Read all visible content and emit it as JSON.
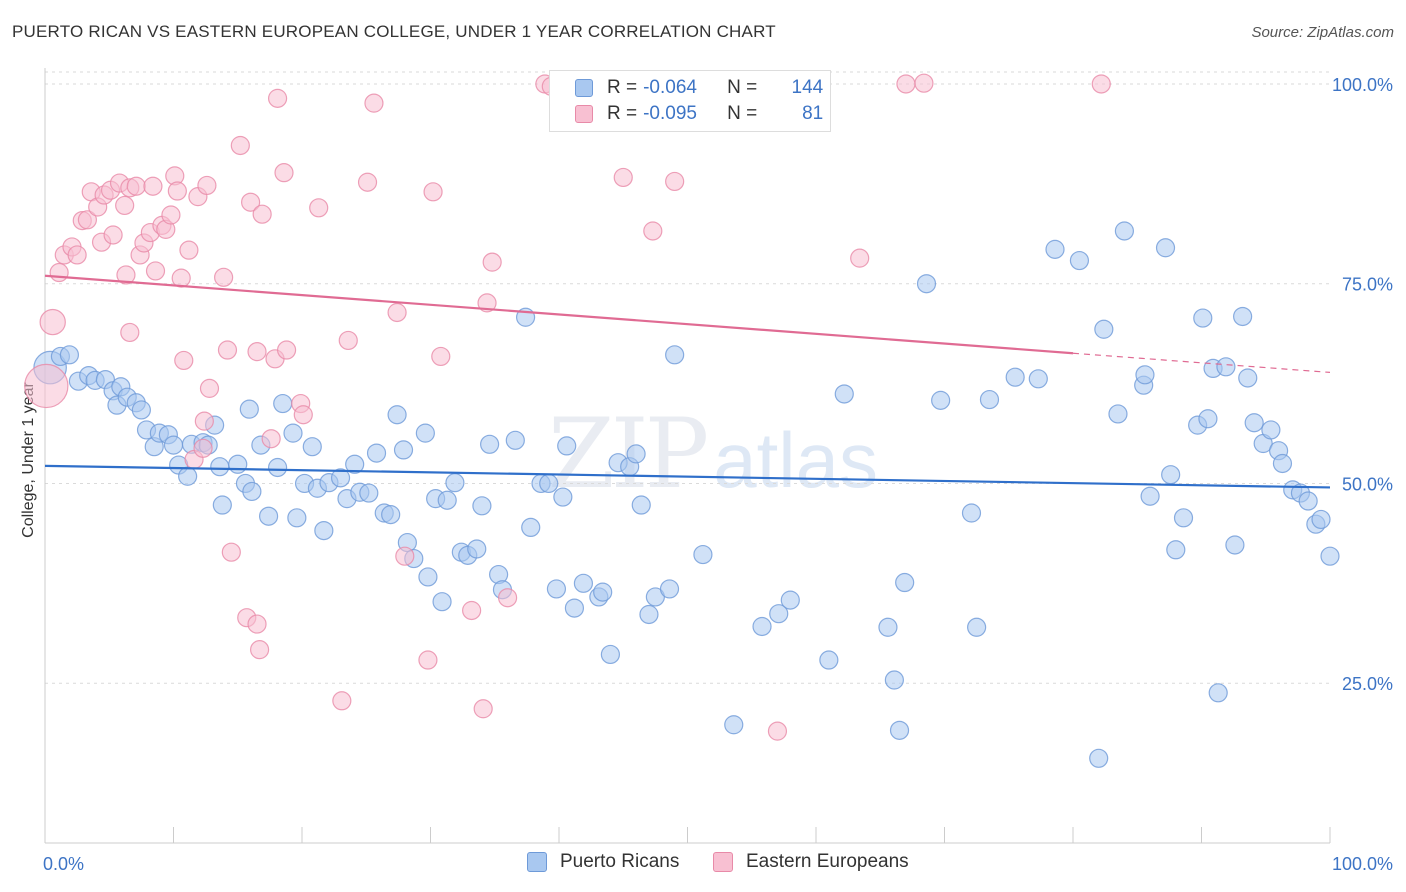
{
  "title": "PUERTO RICAN VS EASTERN EUROPEAN COLLEGE, UNDER 1 YEAR CORRELATION CHART",
  "source": "Source: ZipAtlas.com",
  "watermark": {
    "zip": "ZIP",
    "atlas": "atlas"
  },
  "legend": {
    "rows": [
      {
        "r_label": "R =",
        "r_value": "-0.064",
        "n_label": "N =",
        "n_value": "144",
        "color": "#a9c8f0",
        "border": "#6e9ad8"
      },
      {
        "r_label": "R =",
        "r_value": "-0.095",
        "n_label": "N =",
        "n_value": "81",
        "color": "#f8c0d2",
        "border": "#e88aa8"
      }
    ]
  },
  "bottom_legend": [
    {
      "label": "Puerto Ricans",
      "color": "#a9c8f0",
      "border": "#6e9ad8"
    },
    {
      "label": "Eastern Europeans",
      "color": "#f8c0d2",
      "border": "#e88aa8"
    }
  ],
  "colors": {
    "blue_fill": "#a9c8f0",
    "blue_line": "#2f6fca",
    "pink_fill": "#f8c0d2",
    "pink_line": "#e06b93",
    "tick_label": "#3d74c5"
  },
  "chart_data": {
    "type": "scatter",
    "title": "PUERTO RICAN VS EASTERN EUROPEAN COLLEGE, UNDER 1 YEAR CORRELATION CHART",
    "xlabel": "",
    "ylabel": "College, Under 1 year",
    "xlim": [
      0,
      100
    ],
    "ylim": [
      5,
      103
    ],
    "x_tick_labels": [
      "0.0%",
      "100.0%"
    ],
    "y_ticks": [
      25,
      50,
      75,
      100
    ],
    "y_tick_labels": [
      "25.0%",
      "50.0%",
      "75.0%",
      "100.0%"
    ],
    "grid": true,
    "legend_position": "top-center",
    "series": [
      {
        "name": "Puerto Ricans",
        "r": -0.064,
        "n": 144,
        "trend": {
          "x": [
            0,
            100
          ],
          "y": [
            52.2,
            49.5
          ]
        },
        "points": [
          [
            0.4,
            64.5,
            1.8
          ],
          [
            1.2,
            65.9,
            1
          ],
          [
            1.9,
            66.1,
            1
          ],
          [
            2.6,
            62.8,
            1
          ],
          [
            3.4,
            63.5,
            1
          ],
          [
            3.9,
            62.9,
            1
          ],
          [
            4.7,
            63,
            1
          ],
          [
            5.3,
            61.6,
            1
          ],
          [
            5.6,
            59.8,
            1
          ],
          [
            5.9,
            62.1,
            1
          ],
          [
            6.4,
            60.8,
            1
          ],
          [
            7.1,
            60.1,
            1
          ],
          [
            7.5,
            59.2,
            1
          ],
          [
            7.9,
            56.7,
            1
          ],
          [
            8.5,
            54.6,
            1
          ],
          [
            8.9,
            56.3,
            1
          ],
          [
            9.6,
            56.1,
            1
          ],
          [
            10,
            54.8,
            1
          ],
          [
            10.4,
            52.3,
            1
          ],
          [
            11.1,
            50.9,
            1
          ],
          [
            11.4,
            54.9,
            1
          ],
          [
            12.3,
            55.1,
            1
          ],
          [
            12.7,
            54.8,
            1
          ],
          [
            13.2,
            57.3,
            1
          ],
          [
            13.6,
            52.1,
            1
          ],
          [
            13.8,
            47.3,
            1
          ],
          [
            15,
            52.4,
            1
          ],
          [
            15.6,
            50,
            1
          ],
          [
            15.9,
            59.3,
            1
          ],
          [
            16.1,
            49,
            1
          ],
          [
            16.8,
            54.8,
            1
          ],
          [
            17.4,
            45.9,
            1
          ],
          [
            18.1,
            52,
            1
          ],
          [
            18.5,
            60,
            1
          ],
          [
            19.3,
            56.3,
            1
          ],
          [
            19.6,
            45.7,
            1
          ],
          [
            20.2,
            50,
            1
          ],
          [
            20.8,
            54.6,
            1
          ],
          [
            21.2,
            49.4,
            1
          ],
          [
            21.7,
            44.1,
            1
          ],
          [
            22.1,
            50.1,
            1
          ],
          [
            23,
            50.7,
            1
          ],
          [
            23.5,
            48.1,
            1
          ],
          [
            24.1,
            52.4,
            1
          ],
          [
            24.5,
            48.9,
            1
          ],
          [
            25.2,
            48.8,
            1
          ],
          [
            25.8,
            53.8,
            1
          ],
          [
            26.4,
            46.3,
            1
          ],
          [
            26.9,
            46.1,
            1
          ],
          [
            27.4,
            58.6,
            1
          ],
          [
            27.9,
            54.2,
            1
          ],
          [
            28.2,
            42.6,
            1
          ],
          [
            28.7,
            40.6,
            1
          ],
          [
            29.6,
            56.3,
            1
          ],
          [
            29.8,
            38.3,
            1
          ],
          [
            30.4,
            48.1,
            1
          ],
          [
            30.9,
            35.2,
            1
          ],
          [
            31.3,
            47.9,
            1
          ],
          [
            31.9,
            50.1,
            1
          ],
          [
            32.4,
            41.4,
            1
          ],
          [
            32.9,
            41,
            1
          ],
          [
            33.6,
            41.8,
            1
          ],
          [
            34,
            47.2,
            1
          ],
          [
            34.6,
            54.9,
            1
          ],
          [
            35.3,
            38.6,
            1
          ],
          [
            35.6,
            36.7,
            1
          ],
          [
            36.6,
            55.4,
            1
          ],
          [
            37.4,
            70.8,
            1
          ],
          [
            37.8,
            44.5,
            1
          ],
          [
            38.6,
            50,
            1
          ],
          [
            39.2,
            50,
            1
          ],
          [
            39.8,
            36.8,
            1
          ],
          [
            40.3,
            48.3,
            1
          ],
          [
            40.6,
            54.7,
            1
          ],
          [
            41.2,
            34.4,
            1
          ],
          [
            41.9,
            37.5,
            1
          ],
          [
            43.1,
            35.8,
            1
          ],
          [
            43.4,
            36.4,
            1
          ],
          [
            44,
            28.6,
            1
          ],
          [
            44.6,
            52.6,
            1
          ],
          [
            45.5,
            52.1,
            1
          ],
          [
            46,
            53.7,
            1
          ],
          [
            46.4,
            47.3,
            1
          ],
          [
            47,
            33.6,
            1
          ],
          [
            47.5,
            35.8,
            1
          ],
          [
            48.6,
            36.8,
            1
          ],
          [
            49,
            66.1,
            1
          ],
          [
            51.2,
            41.1,
            1
          ],
          [
            53.6,
            19.8,
            1
          ],
          [
            55.8,
            32.1,
            1
          ],
          [
            57.1,
            33.7,
            1
          ],
          [
            58,
            35.4,
            1
          ],
          [
            61,
            27.9,
            1
          ],
          [
            62.2,
            61.2,
            1
          ],
          [
            65.6,
            32,
            1
          ],
          [
            66.1,
            25.4,
            1
          ],
          [
            66.5,
            19.1,
            1
          ],
          [
            66.9,
            37.6,
            1
          ],
          [
            68.6,
            75,
            1
          ],
          [
            69.7,
            60.4,
            1
          ],
          [
            72.1,
            46.3,
            1
          ],
          [
            72.5,
            32,
            1
          ],
          [
            73.5,
            60.5,
            1
          ],
          [
            75.5,
            63.3,
            1
          ],
          [
            77.3,
            63.1,
            1
          ],
          [
            78.6,
            79.3,
            1
          ],
          [
            80.5,
            77.9,
            1
          ],
          [
            82,
            15.6,
            1
          ],
          [
            82.4,
            69.3,
            1
          ],
          [
            83.5,
            58.7,
            1
          ],
          [
            84,
            81.6,
            1
          ],
          [
            85.5,
            62.3,
            1
          ],
          [
            85.6,
            63.6,
            1
          ],
          [
            86,
            48.4,
            1
          ],
          [
            87.2,
            79.5,
            1
          ],
          [
            87.6,
            51.1,
            1
          ],
          [
            88,
            41.7,
            1
          ],
          [
            88.6,
            45.7,
            1
          ],
          [
            89.7,
            57.3,
            1
          ],
          [
            90.1,
            70.7,
            1
          ],
          [
            90.5,
            58.1,
            1
          ],
          [
            90.9,
            64.4,
            1
          ],
          [
            91.3,
            23.8,
            1
          ],
          [
            91.9,
            64.6,
            1
          ],
          [
            92.6,
            42.3,
            1
          ],
          [
            93.2,
            70.9,
            1
          ],
          [
            93.6,
            63.2,
            1
          ],
          [
            94.1,
            57.6,
            1
          ],
          [
            94.8,
            55,
            1
          ],
          [
            95.4,
            56.7,
            1
          ],
          [
            96,
            54.1,
            1
          ],
          [
            96.3,
            52.5,
            1
          ],
          [
            97.1,
            49.2,
            1
          ],
          [
            97.7,
            48.8,
            1
          ],
          [
            98.3,
            47.8,
            1
          ],
          [
            98.9,
            44.9,
            1
          ],
          [
            99.3,
            45.5,
            1
          ],
          [
            100,
            40.9,
            1
          ]
        ]
      },
      {
        "name": "Eastern Europeans",
        "r": -0.095,
        "n": 81,
        "trend": {
          "x": [
            0,
            80
          ],
          "y": [
            76,
            66.3
          ]
        },
        "trend_dashed": {
          "x": [
            80,
            100
          ],
          "y": [
            66.3,
            63.9
          ]
        },
        "points": [
          [
            0.1,
            62.2,
            2.4
          ],
          [
            0.6,
            70.2,
            1.4
          ],
          [
            1.1,
            76.4,
            1
          ],
          [
            1.5,
            78.6,
            1
          ],
          [
            2.1,
            79.6,
            1
          ],
          [
            2.5,
            78.6,
            1
          ],
          [
            2.9,
            82.9,
            1
          ],
          [
            3.3,
            83,
            1
          ],
          [
            3.6,
            86.5,
            1
          ],
          [
            4.1,
            84.6,
            1
          ],
          [
            4.4,
            80.2,
            1
          ],
          [
            4.6,
            86.1,
            1
          ],
          [
            5.1,
            86.7,
            1
          ],
          [
            5.3,
            81.1,
            1
          ],
          [
            5.8,
            87.6,
            1
          ],
          [
            6.2,
            84.8,
            1
          ],
          [
            6.6,
            87,
            1
          ],
          [
            6.3,
            76.1,
            1
          ],
          [
            6.6,
            68.9,
            1
          ],
          [
            7.1,
            87.2,
            1
          ],
          [
            7.4,
            78.6,
            1
          ],
          [
            7.7,
            80.1,
            1
          ],
          [
            8.2,
            81.4,
            1
          ],
          [
            8.4,
            87.2,
            1
          ],
          [
            8.6,
            76.6,
            1
          ],
          [
            9.1,
            82.3,
            1
          ],
          [
            9.4,
            81.8,
            1
          ],
          [
            9.8,
            83.6,
            1
          ],
          [
            10.1,
            88.5,
            1
          ],
          [
            10.3,
            86.6,
            1
          ],
          [
            10.6,
            75.7,
            1
          ],
          [
            10.8,
            65.4,
            1
          ],
          [
            11.2,
            79.2,
            1
          ],
          [
            11.6,
            53,
            1
          ],
          [
            11.9,
            85.9,
            1
          ],
          [
            12.4,
            57.8,
            1
          ],
          [
            12.6,
            87.3,
            1
          ],
          [
            12.8,
            61.9,
            1
          ],
          [
            13.9,
            75.8,
            1
          ],
          [
            14.2,
            66.7,
            1
          ],
          [
            14.5,
            41.4,
            1
          ],
          [
            15.2,
            92.3,
            1
          ],
          [
            15.7,
            33.2,
            1
          ],
          [
            16,
            85.2,
            1
          ],
          [
            16.5,
            66.5,
            1
          ],
          [
            16.9,
            83.7,
            1
          ],
          [
            16.7,
            29.2,
            1
          ],
          [
            17.6,
            55.6,
            1
          ],
          [
            17.9,
            65.6,
            1
          ],
          [
            18.1,
            98.2,
            1
          ],
          [
            18.6,
            88.9,
            1
          ],
          [
            18.8,
            66.7,
            1
          ],
          [
            19.9,
            60,
            1
          ],
          [
            20.1,
            58.6,
            1
          ],
          [
            21.3,
            84.5,
            1
          ],
          [
            23.1,
            22.8,
            1
          ],
          [
            23.6,
            67.9,
            1
          ],
          [
            25.1,
            87.7,
            1
          ],
          [
            25.6,
            97.6,
            1
          ],
          [
            27.4,
            71.4,
            1
          ],
          [
            28,
            40.9,
            1
          ],
          [
            29.8,
            27.9,
            1
          ],
          [
            30.2,
            86.5,
            1
          ],
          [
            30.8,
            65.9,
            1
          ],
          [
            33.2,
            34.1,
            1
          ],
          [
            34.1,
            21.8,
            1
          ],
          [
            34.4,
            72.6,
            1
          ],
          [
            34.8,
            77.7,
            1
          ],
          [
            36,
            35.7,
            1
          ],
          [
            38.9,
            100,
            1
          ],
          [
            39.4,
            99.7,
            1
          ],
          [
            45,
            88.3,
            1
          ],
          [
            47.3,
            81.6,
            1
          ],
          [
            49,
            87.8,
            1
          ],
          [
            57,
            19,
            1
          ],
          [
            63.4,
            78.2,
            1
          ],
          [
            68.4,
            100.1,
            1
          ],
          [
            67,
            100,
            1
          ],
          [
            82.2,
            100,
            1
          ],
          [
            16.5,
            32.4,
            1
          ],
          [
            12.3,
            54.4,
            1
          ]
        ]
      }
    ]
  }
}
